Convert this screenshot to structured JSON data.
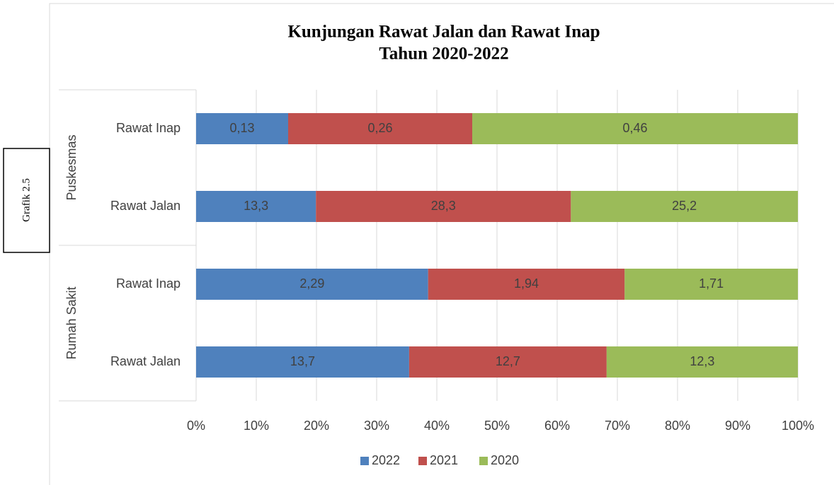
{
  "chart_data": {
    "type": "stacked_bar_100_horizontal",
    "title": [
      "Kunjungan Rawat Jalan dan Rawat Inap",
      "Tahun 2020-2022"
    ],
    "side_label": "Grafik 2.5",
    "groups": [
      "Puskesmas",
      "Puskesmas",
      "Rumah Sakit",
      "Rumah Sakit"
    ],
    "categories": [
      "Rawat Inap",
      "Rawat Jalan",
      "Rawat Inap",
      "Rawat Jalan"
    ],
    "series": [
      {
        "name": "2022",
        "color": "#4f81bd",
        "values": [
          0.13,
          13.3,
          2.29,
          13.7
        ],
        "value_labels": [
          "0,13",
          "13,3",
          "2,29",
          "13,7"
        ]
      },
      {
        "name": "2021",
        "color": "#c0504d",
        "values": [
          0.26,
          28.3,
          1.94,
          12.7
        ],
        "value_labels": [
          "0,26",
          "28,3",
          "1,94",
          "12,7"
        ]
      },
      {
        "name": "2020",
        "color": "#9bbb59",
        "values": [
          0.46,
          25.2,
          1.71,
          12.3
        ],
        "value_labels": [
          "0,46",
          "25,2",
          "1,71",
          "12,3"
        ]
      }
    ],
    "xlim": [
      0,
      100
    ],
    "xticks": [
      {
        "value": 0,
        "label": "0%"
      },
      {
        "value": 10,
        "label": "10%"
      },
      {
        "value": 20,
        "label": "20%"
      },
      {
        "value": 30,
        "label": "30%"
      },
      {
        "value": 40,
        "label": "40%"
      },
      {
        "value": 50,
        "label": "50%"
      },
      {
        "value": 60,
        "label": "60%"
      },
      {
        "value": 70,
        "label": "70%"
      },
      {
        "value": 80,
        "label": "80%"
      },
      {
        "value": 90,
        "label": "90%"
      },
      {
        "value": 100,
        "label": "100%"
      }
    ],
    "grid": true,
    "legend": "bottom"
  }
}
